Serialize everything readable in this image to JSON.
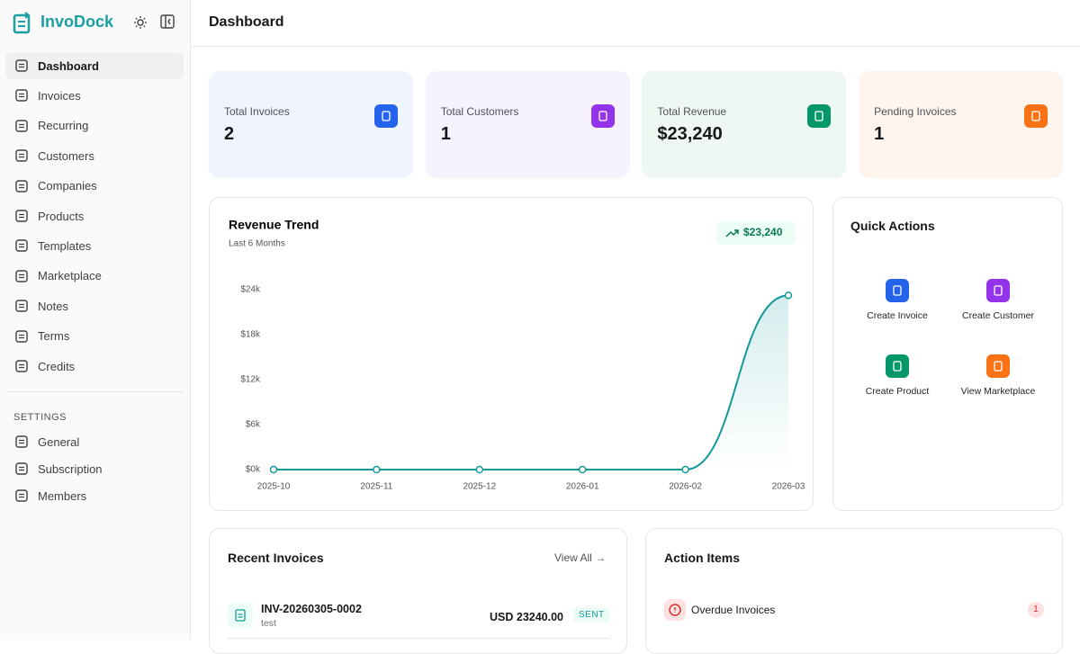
{
  "sidebar": {
    "brand": "InvoDock",
    "nav": [
      "Dashboard",
      "Invoices",
      "Recurring",
      "Customers",
      "Companies",
      "Products",
      "Templates",
      "Marketplace",
      "Notes",
      "Terms",
      "Credits"
    ],
    "settings_heading": "SETTINGS",
    "settings": [
      "General",
      "Subscription",
      "Members"
    ]
  },
  "header": {
    "title": "Dashboard"
  },
  "stats": [
    {
      "label": "Total Invoices",
      "value": "2"
    },
    {
      "label": "Total Customers",
      "value": "1"
    },
    {
      "label": "Total Revenue",
      "value": "$23,240"
    },
    {
      "label": "Pending Invoices",
      "value": "1"
    }
  ],
  "chart_data": {
    "type": "line",
    "title": "Revenue Trend",
    "subtitle": "Last 6 Months",
    "badge": "$23,240",
    "x": [
      "2025-10",
      "2025-11",
      "2025-12",
      "2026-01",
      "2026-02",
      "2026-03"
    ],
    "values": [
      0,
      0,
      0,
      0,
      0,
      23240
    ],
    "color": "#14999a",
    "ylim": [
      0,
      24000
    ],
    "yticks": [
      {
        "value": 0,
        "label": "$0k"
      },
      {
        "value": 6000,
        "label": "$6k"
      },
      {
        "value": 12000,
        "label": "$12k"
      },
      {
        "value": 18000,
        "label": "$18k"
      },
      {
        "value": 24000,
        "label": "$24k"
      }
    ]
  },
  "quick_actions": {
    "title": "Quick Actions",
    "items": [
      "Create Invoice",
      "Create Customer",
      "Create Product",
      "View Marketplace"
    ]
  },
  "recent_invoices": {
    "title": "Recent Invoices",
    "view_all": "View All",
    "rows": [
      {
        "number": "INV-20260305-0002",
        "customer": "test",
        "amount": "USD 23240.00",
        "status": "SENT"
      }
    ]
  },
  "action_items": {
    "title": "Action Items",
    "items": [
      {
        "label": "Overdue Invoices",
        "count": "1"
      }
    ]
  }
}
